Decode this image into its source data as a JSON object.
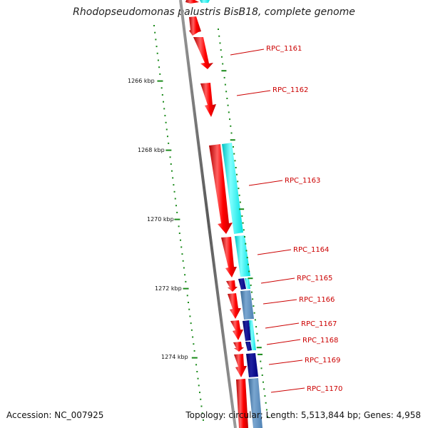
{
  "title": "Rhodopseudomonas palustris BisB18, complete genome",
  "accession": "Accession: NC_007925",
  "summary": "Topology: circular; Length: 5,513,844 bp; Genes: 4,958",
  "colors": {
    "forward_gene": "#ff0000",
    "reverse_cyan": "#00f0f0",
    "reverse_steel": "#4f82b4",
    "reverse_navy": "#000080",
    "backbone": "#808080",
    "tick": "#1a8a1a",
    "label": "#cc0000"
  },
  "kbp_markers": [
    {
      "kbp": 1266,
      "label": "1266 kbp"
    },
    {
      "kbp": 1268,
      "label": "1268 kbp"
    },
    {
      "kbp": 1270,
      "label": "1270 kbp"
    },
    {
      "kbp": 1272,
      "label": "1272 kbp"
    },
    {
      "kbp": 1274,
      "label": "1274 kbp"
    }
  ],
  "gene_labels": [
    "RPC_1161",
    "RPC_1162",
    "RPC_1163",
    "RPC_1164",
    "RPC_1165",
    "RPC_1166",
    "RPC_1167",
    "RPC_1168",
    "RPC_1169",
    "RPC_1170"
  ]
}
